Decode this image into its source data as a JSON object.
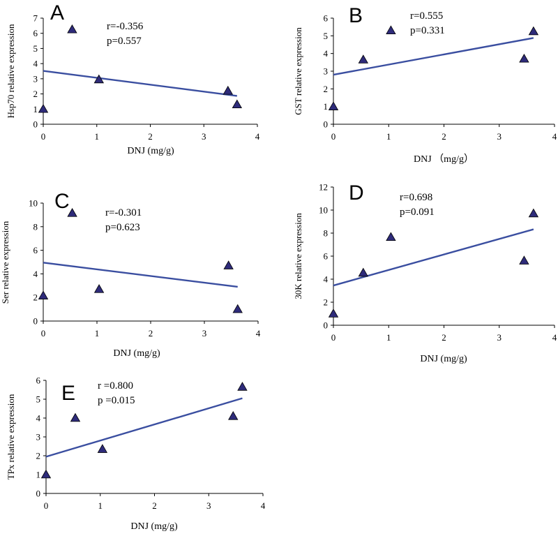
{
  "figure": {
    "description": "Correlation between DNJ content and gene relative expression"
  },
  "chart_data": [
    {
      "type": "scatter",
      "panel": "A",
      "ylabel": "Hsp70 relative expression",
      "xlabel": "DNJ  (mg/g)",
      "xlim": [
        0,
        4
      ],
      "ylim": [
        0,
        7
      ],
      "xticks": [
        0,
        1,
        2,
        3,
        4
      ],
      "yticks": [
        0,
        1,
        2,
        3,
        4,
        5,
        6,
        7
      ],
      "x": [
        0,
        0.54,
        1.04,
        3.45,
        3.62
      ],
      "y": [
        1.0,
        6.25,
        2.95,
        2.2,
        1.3
      ],
      "trendline": {
        "x": [
          0,
          3.62
        ],
        "y": [
          3.52,
          1.87
        ]
      },
      "stats": {
        "r": "r=-0.356",
        "p": "p=0.557"
      },
      "marker_color": "#2e2b7a",
      "line_color": "#3a4ea0"
    },
    {
      "type": "scatter",
      "panel": "B",
      "ylabel": "GST relative expression",
      "xlabel": "DNJ （mg/g）",
      "xlim": [
        0,
        4
      ],
      "ylim": [
        0,
        6
      ],
      "xticks": [
        0,
        1,
        2,
        3,
        4
      ],
      "yticks": [
        0,
        1,
        2,
        3,
        4,
        5,
        6
      ],
      "x": [
        0,
        0.54,
        1.04,
        3.45,
        3.62
      ],
      "y": [
        1.0,
        3.65,
        5.3,
        3.7,
        5.25
      ],
      "trendline": {
        "x": [
          0,
          3.62
        ],
        "y": [
          2.8,
          4.88
        ]
      },
      "stats": {
        "r": "r=0.555",
        "p": "p=0.331"
      },
      "marker_color": "#2e2b7a",
      "line_color": "#3a4ea0"
    },
    {
      "type": "scatter",
      "panel": "C",
      "ylabel": "Ser relative expression",
      "xlabel": "DNJ (mg/g)",
      "xlim": [
        0,
        4
      ],
      "ylim": [
        0,
        10
      ],
      "xticks": [
        0,
        1,
        2,
        3,
        4
      ],
      "yticks": [
        0,
        2,
        4,
        6,
        8,
        10
      ],
      "x": [
        0,
        0.54,
        1.04,
        3.45,
        3.62
      ],
      "y": [
        2.15,
        9.15,
        2.7,
        4.7,
        1.0
      ],
      "trendline": {
        "x": [
          0,
          3.62
        ],
        "y": [
          4.95,
          2.9
        ]
      },
      "stats": {
        "r": "r=-0.301",
        "p": "p=0.623"
      },
      "marker_color": "#2e2b7a",
      "line_color": "#3a4ea0"
    },
    {
      "type": "scatter",
      "panel": "D",
      "ylabel": "30K relative expression",
      "xlabel": "DNJ (mg/g)",
      "xlim": [
        0,
        4
      ],
      "ylim": [
        0,
        12
      ],
      "xticks": [
        0,
        1,
        2,
        3,
        4
      ],
      "yticks": [
        0,
        2,
        4,
        6,
        8,
        10,
        12
      ],
      "x": [
        0,
        0.54,
        1.04,
        3.45,
        3.62
      ],
      "y": [
        1.0,
        4.55,
        7.65,
        5.6,
        9.7
      ],
      "trendline": {
        "x": [
          0,
          3.62
        ],
        "y": [
          3.45,
          8.33
        ]
      },
      "stats": {
        "r": "r=0.698",
        "p": "p=0.091"
      },
      "marker_color": "#2e2b7a",
      "line_color": "#3a4ea0"
    },
    {
      "type": "scatter",
      "panel": "E",
      "ylabel": "TPx relative expression",
      "xlabel": "DNJ (mg/g)",
      "xlim": [
        0,
        4
      ],
      "ylim": [
        0,
        6
      ],
      "xticks": [
        0,
        1,
        2,
        3,
        4
      ],
      "yticks": [
        0,
        1,
        2,
        3,
        4,
        5,
        6
      ],
      "x": [
        0,
        0.54,
        1.04,
        3.45,
        3.62
      ],
      "y": [
        1.0,
        4.0,
        2.35,
        4.1,
        5.65
      ],
      "trendline": {
        "x": [
          0,
          3.62
        ],
        "y": [
          1.95,
          5.05
        ]
      },
      "stats": {
        "r": "r =0.800",
        "p": "p =0.015"
      },
      "marker_color": "#2e2b7a",
      "line_color": "#3a4ea0"
    }
  ]
}
